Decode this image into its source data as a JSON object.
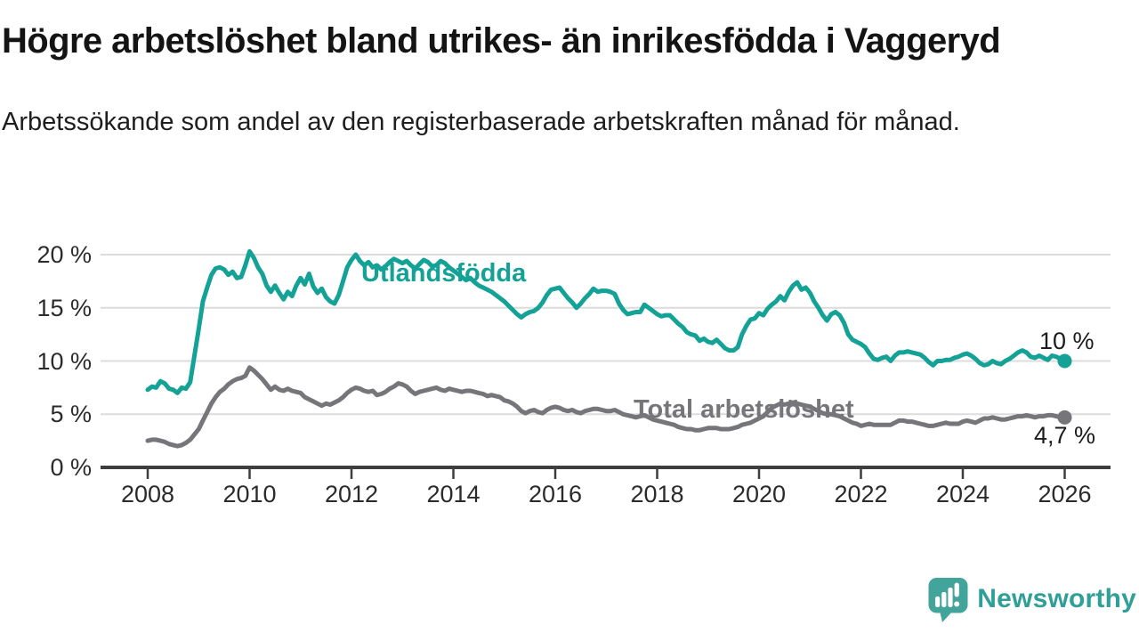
{
  "header": {
    "title": "Högre arbetslöshet bland utrikes- än inrikesfödda i Vaggeryd",
    "subtitle": "Arbetssökande som andel av den registerbaserade arbetskraften månad för månad."
  },
  "footer": {
    "brand": "Newsworthy",
    "logo_icon": "speech-bubble-with-bar-chart-and-exclamation"
  },
  "colors": {
    "series_foreign_born": "#13a295",
    "series_total": "#76767a",
    "gridline": "#dcdcdc",
    "axis": "#3e3e3e",
    "axis_text": "#2b2b2b",
    "title_text": "#141414",
    "logo_teal": "#2f9f97",
    "logo_icon_teal": "#43a49b"
  },
  "chart_data": {
    "type": "line",
    "title": "Högre arbetslöshet bland utrikes- än inrikesfödda i Vaggeryd",
    "subtitle": "Arbetssökande som andel av den registerbaserade arbetskraften månad för månad.",
    "xlabel": "",
    "ylabel": "",
    "legend_position": "inline-labels-on-lines",
    "grid": "horizontal-only",
    "x_axis": {
      "tick_years": [
        2008,
        2010,
        2012,
        2014,
        2016,
        2018,
        2020,
        2022,
        2024,
        2026
      ],
      "tick_labels": [
        "2008",
        "2010",
        "2012",
        "2014",
        "2016",
        "2018",
        "2020",
        "2022",
        "2024",
        "2026"
      ]
    },
    "y_axis": {
      "unit": "%",
      "range": [
        0,
        21.5
      ],
      "tick_values": [
        0,
        5,
        10,
        15,
        20
      ],
      "tick_labels": [
        "0 %",
        "5 %",
        "10 %",
        "15 %",
        "20 %"
      ]
    },
    "series": [
      {
        "name": "Utlandsfödda",
        "color": "#13a295",
        "start_year": 2008,
        "interval_months": 1,
        "end_label": "10 %",
        "end_value": 10,
        "values": [
          7.3,
          7.6,
          7.5,
          8.1,
          7.9,
          7.4,
          7.3,
          7.0,
          7.5,
          7.4,
          8.0,
          10.5,
          13.0,
          15.6,
          16.9,
          18.1,
          18.7,
          18.8,
          18.6,
          18.1,
          18.4,
          17.8,
          17.9,
          19.0,
          20.3,
          19.7,
          18.8,
          18.2,
          17.1,
          16.5,
          17.1,
          16.4,
          15.8,
          16.5,
          16.1,
          17.1,
          17.8,
          17.2,
          18.2,
          17.0,
          16.4,
          16.8,
          16.0,
          15.6,
          15.4,
          16.2,
          17.5,
          18.8,
          19.5,
          20.0,
          19.4,
          19.0,
          19.3,
          18.8,
          19.0,
          18.6,
          18.9,
          19.3,
          19.6,
          19.4,
          19.2,
          19.4,
          19.0,
          18.7,
          19.1,
          19.5,
          19.3,
          18.9,
          19.0,
          19.4,
          19.2,
          18.8,
          18.5,
          18.2,
          17.9,
          17.6,
          17.8,
          17.4,
          17.1,
          16.9,
          16.7,
          16.5,
          16.2,
          15.9,
          15.6,
          15.2,
          14.8,
          14.4,
          14.1,
          14.4,
          14.6,
          14.7,
          15.0,
          15.5,
          16.2,
          16.7,
          16.8,
          16.9,
          16.4,
          15.9,
          15.5,
          15.0,
          15.4,
          15.9,
          16.3,
          16.8,
          16.5,
          16.6,
          16.6,
          16.5,
          16.3,
          15.4,
          14.8,
          14.4,
          14.5,
          14.6,
          14.6,
          15.3,
          15.0,
          14.7,
          14.4,
          14.2,
          14.3,
          14.3,
          13.9,
          13.5,
          13.2,
          12.7,
          12.5,
          12.4,
          11.9,
          12.1,
          11.8,
          11.7,
          12.0,
          11.6,
          11.2,
          11.0,
          11.0,
          11.3,
          12.5,
          13.3,
          13.9,
          14.0,
          14.5,
          14.3,
          14.9,
          15.3,
          15.6,
          16.1,
          15.7,
          16.5,
          17.1,
          17.4,
          16.7,
          16.9,
          16.4,
          15.6,
          15.0,
          14.3,
          13.8,
          14.4,
          14.6,
          14.3,
          13.6,
          12.5,
          12.0,
          11.8,
          11.6,
          11.3,
          10.7,
          10.2,
          10.1,
          10.3,
          10.4,
          10.0,
          10.5,
          10.8,
          10.8,
          10.9,
          10.8,
          10.7,
          10.6,
          10.3,
          9.9,
          9.6,
          10.0,
          10.0,
          10.1,
          10.1,
          10.3,
          10.4,
          10.6,
          10.7,
          10.5,
          10.2,
          9.8,
          9.6,
          9.7,
          10.0,
          9.8,
          9.7,
          10.0,
          10.2,
          10.5,
          10.8,
          11.0,
          10.8,
          10.4,
          10.3,
          10.5,
          10.3,
          10.1,
          10.5,
          10.4,
          10.2,
          10.0
        ]
      },
      {
        "name": "Total arbetslöshet",
        "color": "#76767a",
        "start_year": 2008,
        "interval_months": 1,
        "end_label": "4,7 %",
        "end_value": 4.7,
        "values": [
          2.5,
          2.6,
          2.6,
          2.5,
          2.4,
          2.2,
          2.1,
          2.0,
          2.1,
          2.3,
          2.6,
          3.1,
          3.6,
          4.4,
          5.2,
          6.0,
          6.6,
          7.1,
          7.4,
          7.8,
          8.1,
          8.3,
          8.4,
          8.6,
          9.4,
          9.1,
          8.7,
          8.3,
          7.8,
          7.3,
          7.6,
          7.3,
          7.2,
          7.4,
          7.2,
          7.1,
          7.0,
          6.6,
          6.4,
          6.2,
          6.0,
          5.8,
          6.0,
          5.9,
          6.1,
          6.3,
          6.6,
          7.0,
          7.3,
          7.5,
          7.4,
          7.2,
          7.1,
          7.2,
          6.8,
          6.9,
          7.1,
          7.4,
          7.6,
          7.9,
          7.8,
          7.6,
          7.2,
          6.9,
          7.1,
          7.2,
          7.3,
          7.4,
          7.5,
          7.3,
          7.2,
          7.4,
          7.3,
          7.2,
          7.1,
          7.2,
          7.2,
          7.1,
          7.0,
          6.9,
          6.7,
          6.8,
          6.7,
          6.6,
          6.3,
          6.2,
          6.0,
          5.7,
          5.3,
          5.1,
          5.3,
          5.4,
          5.2,
          5.1,
          5.4,
          5.6,
          5.7,
          5.6,
          5.4,
          5.3,
          5.4,
          5.2,
          5.1,
          5.3,
          5.4,
          5.5,
          5.5,
          5.4,
          5.3,
          5.3,
          5.4,
          5.2,
          5.0,
          4.9,
          4.8,
          4.7,
          4.8,
          4.9,
          4.7,
          4.5,
          4.4,
          4.3,
          4.2,
          4.1,
          4.0,
          3.8,
          3.7,
          3.6,
          3.6,
          3.5,
          3.5,
          3.6,
          3.7,
          3.7,
          3.7,
          3.6,
          3.6,
          3.6,
          3.7,
          3.8,
          4.0,
          4.1,
          4.2,
          4.4,
          4.6,
          4.8,
          5.2,
          5.6,
          5.8,
          6.0,
          5.9,
          6.0,
          6.1,
          6.0,
          5.9,
          5.8,
          5.7,
          5.5,
          5.3,
          5.1,
          5.0,
          5.0,
          4.9,
          4.8,
          4.6,
          4.4,
          4.2,
          4.1,
          3.9,
          4.0,
          4.1,
          4.0,
          4.0,
          4.0,
          4.0,
          4.0,
          4.2,
          4.4,
          4.4,
          4.3,
          4.3,
          4.2,
          4.1,
          4.0,
          3.9,
          3.9,
          4.0,
          4.1,
          4.2,
          4.1,
          4.1,
          4.1,
          4.3,
          4.4,
          4.3,
          4.2,
          4.4,
          4.6,
          4.6,
          4.7,
          4.6,
          4.5,
          4.5,
          4.6,
          4.7,
          4.8,
          4.8,
          4.9,
          4.8,
          4.7,
          4.8,
          4.8,
          4.9,
          4.9,
          4.8,
          4.7,
          4.7
        ]
      }
    ]
  }
}
